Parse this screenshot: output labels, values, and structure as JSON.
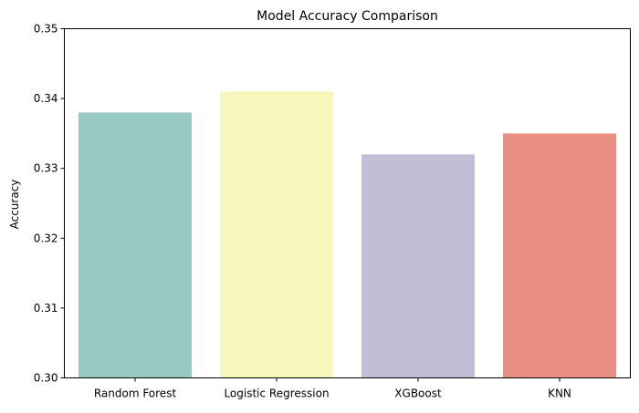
{
  "chart_data": {
    "type": "bar",
    "title": "Model Accuracy Comparison",
    "xlabel": "",
    "ylabel": "Accuracy",
    "categories": [
      "Random Forest",
      "Logistic Regression",
      "XGBoost",
      "KNN"
    ],
    "values": [
      0.338,
      0.341,
      0.332,
      0.335
    ],
    "colors": [
      "#98c9c2",
      "#f7f6bb",
      "#c3bed6",
      "#eb8e83"
    ],
    "ylim": [
      0.3,
      0.35
    ],
    "yticks": [
      0.3,
      0.31,
      0.32,
      0.33,
      0.34,
      0.35
    ],
    "ytick_labels": [
      "0.30",
      "0.31",
      "0.32",
      "0.33",
      "0.34",
      "0.35"
    ],
    "grid": false,
    "legend": "none"
  }
}
